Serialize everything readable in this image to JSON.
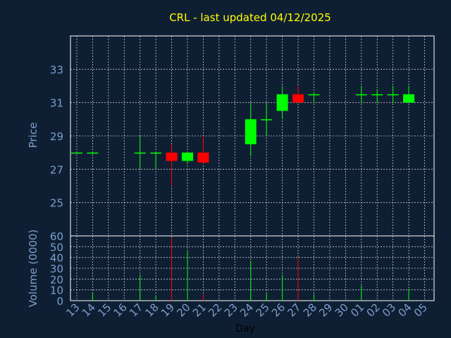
{
  "chart_data": {
    "type": "candlestick",
    "title": "CRL - last updated 04/12/2025",
    "xlabel": "Day",
    "days": [
      "13",
      "14",
      "15",
      "16",
      "17",
      "18",
      "19",
      "20",
      "21",
      "22",
      "23",
      "24",
      "25",
      "26",
      "27",
      "28",
      "29",
      "30",
      "01",
      "02",
      "03",
      "04",
      "05"
    ],
    "price_panel": {
      "ylabel": "Price",
      "ylim": [
        23.0,
        35.0
      ],
      "yticks": [
        25,
        27,
        29,
        31,
        33
      ],
      "candles": [
        {
          "day": "13",
          "open": 28.0,
          "high": 28.0,
          "low": 28.0,
          "close": 28.0
        },
        {
          "day": "14",
          "open": 28.0,
          "high": 28.0,
          "low": 28.0,
          "close": 28.0
        },
        {
          "day": "17",
          "open": 28.0,
          "high": 29.0,
          "low": 27.0,
          "close": 28.0
        },
        {
          "day": "18",
          "open": 28.0,
          "high": 28.0,
          "low": 27.0,
          "close": 28.0
        },
        {
          "day": "19",
          "open": 28.0,
          "high": 28.5,
          "low": 26.0,
          "close": 27.5
        },
        {
          "day": "20",
          "open": 27.5,
          "high": 28.0,
          "low": 27.3,
          "close": 28.0
        },
        {
          "day": "21",
          "open": 28.0,
          "high": 29.0,
          "low": 27.3,
          "close": 27.4
        },
        {
          "day": "24",
          "open": 28.5,
          "high": 31.0,
          "low": 27.8,
          "close": 30.0
        },
        {
          "day": "25",
          "open": 30.0,
          "high": 31.0,
          "low": 29.0,
          "close": 30.0
        },
        {
          "day": "26",
          "open": 30.5,
          "high": 32.0,
          "low": 30.0,
          "close": 31.5
        },
        {
          "day": "27",
          "open": 31.5,
          "high": 32.0,
          "low": 31.0,
          "close": 31.0
        },
        {
          "day": "28",
          "open": 31.5,
          "high": 31.6,
          "low": 31.0,
          "close": 31.5
        },
        {
          "day": "01",
          "open": 31.5,
          "high": 32.0,
          "low": 31.0,
          "close": 31.5
        },
        {
          "day": "02",
          "open": 31.5,
          "high": 31.8,
          "low": 31.0,
          "close": 31.5
        },
        {
          "day": "03",
          "open": 31.5,
          "high": 32.0,
          "low": 31.0,
          "close": 31.5
        },
        {
          "day": "04",
          "open": 31.0,
          "high": 32.0,
          "low": 31.0,
          "close": 31.5
        }
      ]
    },
    "volume_panel": {
      "ylabel": "Volume (0000)",
      "ylim": [
        0,
        60
      ],
      "yticks": [
        0,
        10,
        20,
        30,
        40,
        50,
        60
      ],
      "bars": [
        {
          "day": "14",
          "value": 7
        },
        {
          "day": "17",
          "value": 24
        },
        {
          "day": "18",
          "value": 5
        },
        {
          "day": "19",
          "value": 59
        },
        {
          "day": "20",
          "value": 47
        },
        {
          "day": "21",
          "value": 6
        },
        {
          "day": "24",
          "value": 37
        },
        {
          "day": "25",
          "value": 7
        },
        {
          "day": "26",
          "value": 24
        },
        {
          "day": "27",
          "value": 40
        },
        {
          "day": "28",
          "value": 6
        },
        {
          "day": "01",
          "value": 14
        },
        {
          "day": "04",
          "value": 11
        }
      ]
    },
    "colors": {
      "background": "#0f1f33",
      "up": "#00ff00",
      "down": "#ff0000",
      "title": "#ffff00",
      "axis_text": "#7b9fcf",
      "grid": "#ffffff"
    },
    "grid": true
  }
}
